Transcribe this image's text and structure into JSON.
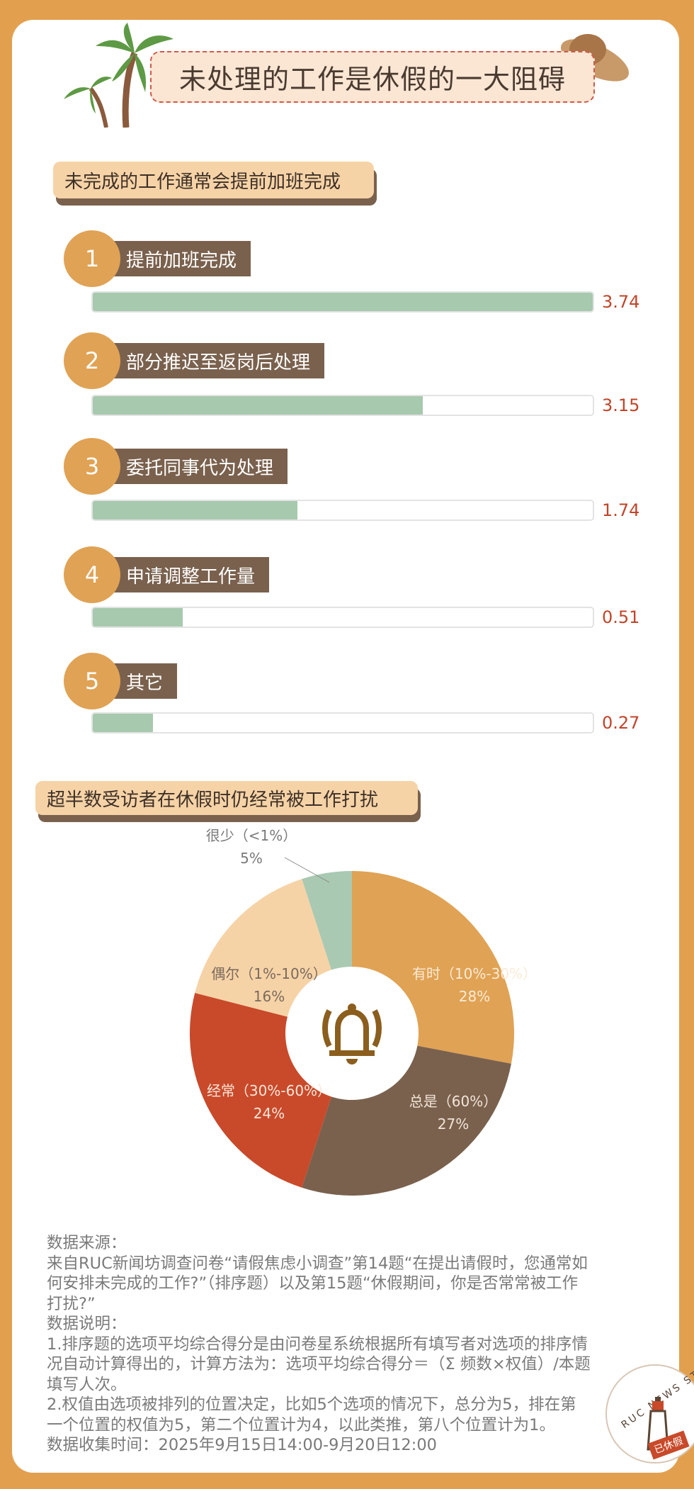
{
  "title": "未处理的工作是休假的一大阻碍",
  "section1": {
    "heading": "未完成的工作通常会提前加班完成",
    "items": [
      {
        "rank": "1",
        "label": "提前加班完成",
        "value": "3.74",
        "fill_percent": 100
      },
      {
        "rank": "2",
        "label": "部分推迟至返岗后处理",
        "value": "3.15",
        "fill_percent": 66
      },
      {
        "rank": "3",
        "label": "委托同事代为处理",
        "value": "1.74",
        "fill_percent": 41
      },
      {
        "rank": "4",
        "label": "申请调整工作量",
        "value": "0.51",
        "fill_percent": 18
      },
      {
        "rank": "5",
        "label": "其它",
        "value": "0.27",
        "fill_percent": 12
      }
    ]
  },
  "section2": {
    "heading": "超半数受访者在休假时仍经常被工作打扰",
    "center_icon": "bell-icon"
  },
  "chart_data": [
    {
      "type": "bar",
      "orientation": "horizontal",
      "categories": [
        "提前加班完成",
        "部分推迟至返岗后处理",
        "委托同事代为处理",
        "申请调整工作量",
        "其它"
      ],
      "values": [
        3.74,
        3.15,
        1.74,
        0.51,
        0.27
      ],
      "color": "#A7C9AE"
    },
    {
      "type": "pie",
      "donut": true,
      "slices": [
        {
          "label": "有时（10%-30%）",
          "value": 28,
          "pct": "28%",
          "color": "#E0A254"
        },
        {
          "label": "总是（60%）",
          "value": 27,
          "pct": "27%",
          "color": "#7A614D"
        },
        {
          "label": "经常（30%-60%）",
          "value": 24,
          "pct": "24%",
          "color": "#C84A2A"
        },
        {
          "label": "偶尔（1%-10%）",
          "value": 16,
          "pct": "16%",
          "color": "#F6D3A6"
        },
        {
          "label": "很少（<1%）",
          "value": 5,
          "pct": "5%",
          "color": "#A9C9B2"
        }
      ]
    }
  ],
  "footer": {
    "lines": [
      "数据来源：",
      "来自RUC新闻坊调查问卷“请假焦虑小调查”第14题“在提出请假时，您通常如何安排未完成的工作?”（排序题）以及第15题“休假期间，你是否常常被工作打扰?”",
      "数据说明：",
      "1.排序题的选项平均综合得分是由问卷星系统根据所有填写者对选项的排序情况自动计算得出的，计算方法为：选项平均综合得分＝（Σ 频数×权值）/本题填写人次。",
      "2.权值由选项被排列的位置决定，比如5个选项的情况下，总分为5，排在第一个位置的权值为5，第二个位置计为4，以此类推，第八个位置计为1。",
      "数据收集时间：2025年9月15日14:00-9月20日12:00"
    ]
  },
  "stamp": {
    "text": "RUC NEWS STUDIO",
    "tag": "已休假"
  },
  "colors": {
    "background": "#E2A04F",
    "accent": "#C0452A",
    "brown": "#7A614D",
    "green": "#A7C9AE"
  }
}
